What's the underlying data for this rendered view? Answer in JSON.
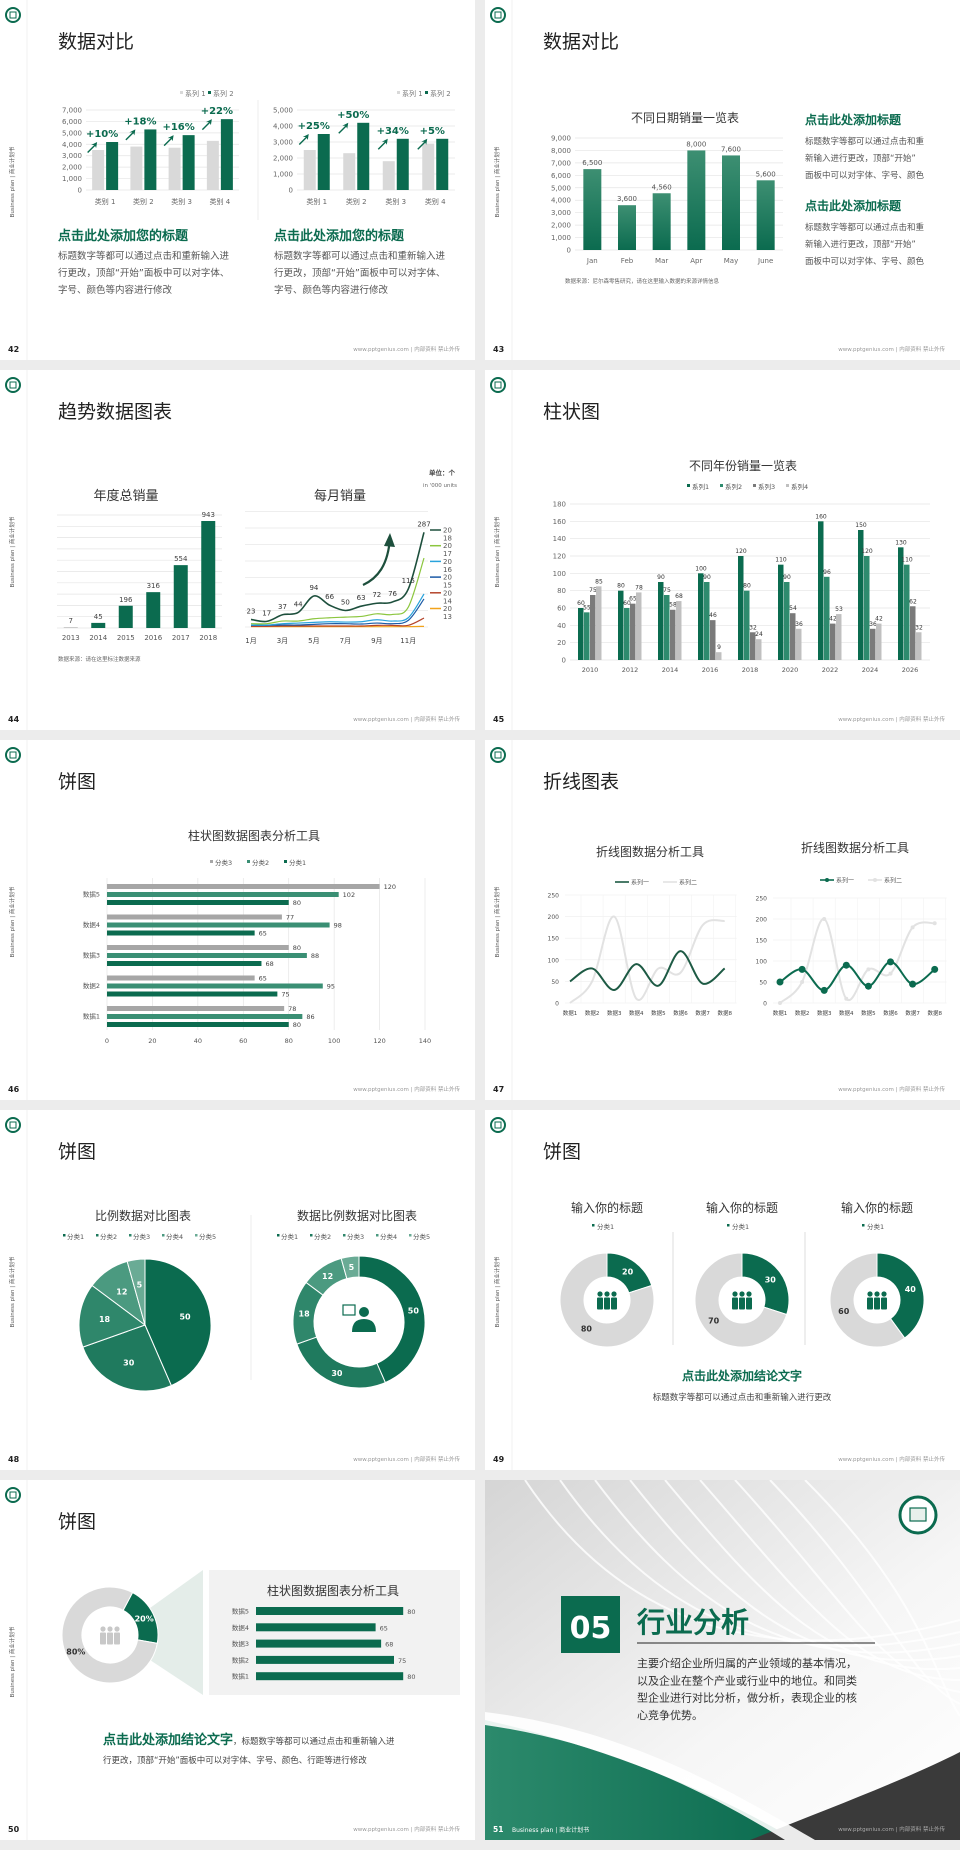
{
  "common": {
    "side_label": "Business plan | 商业计划书",
    "footer": "www.pptgenius.com | 内部资料 禁止外传",
    "logo": "company-seal-logo",
    "colors": {
      "brand": "#0b6b4f",
      "brand_mid": "#2e8b6e",
      "gray_light": "#d9d9d9",
      "gray_dark": "#7a7a7a",
      "page_bg": "#ececec"
    }
  },
  "slides": [
    {
      "number": "42",
      "title": "数据对比",
      "blocks": [
        {
          "heading": "点击此处添加您的标题",
          "lines": [
            "标题数字等都可以通过点击和重新输入进",
            "行更改，顶部“开始”面板中可以对字体、",
            "字号、颜色等内容进行修改"
          ]
        },
        {
          "heading": "点击此处添加您的标题",
          "lines": [
            "标题数字等都可以通过点击和重新输入进",
            "行更改，顶部“开始”面板中可以对字体、",
            "字号、颜色等内容进行修改"
          ]
        }
      ]
    },
    {
      "number": "43",
      "title": "数据对比",
      "source": "数据来源：尼尔森零售研究，请在这里输入数据的来源详情信息",
      "blocks": [
        {
          "heading": "点击此处添加标题",
          "lines": [
            "标题数字等都可以通过点击和重",
            "新输入进行更改，顶部“开始”",
            "面板中可以对字体、字号、颜色"
          ]
        },
        {
          "heading": "点击此处添加标题",
          "lines": [
            "标题数字等都可以通过点击和重",
            "新输入进行更改，顶部“开始”",
            "面板中可以对字体、字号、颜色"
          ]
        }
      ]
    },
    {
      "number": "44",
      "title": "趋势数据图表",
      "source": "数据来源：请在这里标注数据来源",
      "unit": "单位：个",
      "unit_sub": "in '000 units"
    },
    {
      "number": "45",
      "title": "柱状图"
    },
    {
      "number": "46",
      "title": "饼图"
    },
    {
      "number": "47",
      "title": "折线图表"
    },
    {
      "number": "48",
      "title": "饼图"
    },
    {
      "number": "49",
      "title": "饼图",
      "conclusion_heading": "点击此处添加结论文字",
      "conclusion_body": "标题数字等都可以通过点击和重新输入进行更改"
    },
    {
      "number": "50",
      "title": "饼图",
      "conclusion_heading": "点击此处添加结论文字",
      "conclusion_tail": "，标题数字等都可以通过点击和重新输入进",
      "conclusion_line2": "行更改，顶部“开始”面板中可以对字体、字号、颜色、行距等进行修改"
    },
    {
      "number": "51",
      "section_number": "05",
      "title": "行业分析",
      "footer_label": "Business plan | 商业计划书",
      "lines": [
        "主要介绍企业所归属的产业领域的基本情况，",
        "以及企业在整个产业或行业中的地位。和同类",
        "型企业进行对比分析，做分析，表现企业的核",
        "心竞争优势。"
      ]
    }
  ],
  "chart_data": [
    {
      "type": "bar",
      "categories": [
        "类别 1",
        "类别 2",
        "类别 3",
        "类别 4"
      ],
      "series": [
        {
          "name": "系列 1",
          "values": [
            3500,
            3800,
            3700,
            4300
          ],
          "color": "#d9d9d9"
        },
        {
          "name": "系列 2",
          "values": [
            4200,
            5300,
            4800,
            6200
          ],
          "color": "#0b6b4f"
        }
      ],
      "ylim": [
        0,
        7000
      ],
      "yticks": [
        0,
        1000,
        2000,
        3000,
        4000,
        5000,
        6000,
        7000
      ],
      "annotations": [
        "+10%",
        "+18%",
        "+16%",
        "+22%"
      ],
      "legend": "top-right",
      "grid": true
    },
    {
      "type": "bar",
      "categories": [
        "类别 1",
        "类别 2",
        "类别 3",
        "类别 4"
      ],
      "series": [
        {
          "name": "系列 1",
          "values": [
            2500,
            2300,
            1800,
            2900
          ],
          "color": "#d9d9d9"
        },
        {
          "name": "系列 2",
          "values": [
            3500,
            4200,
            3200,
            3200
          ],
          "color": "#0b6b4f"
        }
      ],
      "ylim": [
        0,
        5000
      ],
      "yticks": [
        0,
        1000,
        2000,
        3000,
        4000,
        5000
      ],
      "annotations": [
        "+25%",
        "+50%",
        "+34%",
        "+5%"
      ],
      "legend": "top-right",
      "grid": true
    },
    {
      "type": "bar",
      "title": "不同日期销量一览表",
      "categories": [
        "Jan",
        "Feb",
        "Mar",
        "Apr",
        "May",
        "June"
      ],
      "values": [
        6500,
        3600,
        4560,
        8000,
        7600,
        5600
      ],
      "ylim": [
        0,
        9000
      ],
      "yticks": [
        0,
        1000,
        2000,
        3000,
        4000,
        5000,
        6000,
        7000,
        8000,
        9000
      ],
      "grid": true,
      "color": "#0b6b4f"
    },
    {
      "type": "bar",
      "title": "年度总销量",
      "categories": [
        "2013",
        "2014",
        "2015",
        "2016",
        "2017",
        "2018"
      ],
      "values": [
        7,
        45,
        196,
        316,
        554,
        943
      ],
      "ylim": [
        0,
        1000
      ],
      "grid": true,
      "color": "#0b6b4f"
    },
    {
      "type": "line",
      "title": "每月销量",
      "x": [
        "1月",
        "2月",
        "3月",
        "4月",
        "5月",
        "6月",
        "7月",
        "8月",
        "9月",
        "10月",
        "11月",
        "12月"
      ],
      "xtick_labels": [
        "1月",
        "3月",
        "5月",
        "7月",
        "9月",
        "11月"
      ],
      "ylim": [
        0,
        350
      ],
      "grid": true,
      "legend": "right",
      "series": [
        {
          "name": "2018",
          "color": "#1d4f3c",
          "values": [
            23,
            17,
            37,
            44,
            94,
            66,
            50,
            63,
            72,
            76,
            115,
            287
          ],
          "labeled": true
        },
        {
          "name": "2017",
          "color": "#8cc63f",
          "values": [
            10,
            10,
            18,
            18,
            25,
            28,
            30,
            32,
            40,
            38,
            60,
            209
          ]
        },
        {
          "name": "2016",
          "color": "#29a3dc",
          "values": [
            6,
            6,
            10,
            12,
            14,
            16,
            15,
            16,
            22,
            18,
            28,
            100
          ]
        },
        {
          "name": "2015",
          "color": "#1b5aa6",
          "values": [
            5,
            5,
            6,
            6,
            8,
            10,
            10,
            9,
            12,
            10,
            20,
            85
          ]
        },
        {
          "name": "2014",
          "color": "#b5452b",
          "values": [
            2,
            2,
            3,
            3,
            3,
            3,
            3,
            3,
            5,
            5,
            5,
            27
          ]
        },
        {
          "name": "2013",
          "color": "#f2a31b",
          "values": [
            1,
            1,
            1,
            1,
            1,
            1,
            1,
            1,
            1,
            1,
            1,
            2
          ]
        }
      ]
    },
    {
      "type": "bar",
      "title": "不同年份销量一览表",
      "categories": [
        "2010",
        "2012",
        "2014",
        "2016",
        "2018",
        "2020",
        "2022",
        "2024",
        "2026"
      ],
      "series": [
        {
          "name": "系列1",
          "color": "#0b6b4f",
          "values": [
            60,
            80,
            90,
            100,
            120,
            110,
            160,
            150,
            130
          ]
        },
        {
          "name": "系列2",
          "color": "#2e8b6e",
          "values": [
            55,
            60,
            75,
            90,
            80,
            90,
            96,
            120,
            110
          ]
        },
        {
          "name": "系列3",
          "color": "#7a7a7a",
          "values": [
            75,
            65,
            58,
            46,
            32,
            54,
            42,
            36,
            62
          ]
        },
        {
          "name": "系列4",
          "color": "#c0c0c0",
          "values": [
            85,
            78,
            68,
            9,
            24,
            36,
            53,
            42,
            32
          ]
        }
      ],
      "ylim": [
        0,
        180
      ],
      "yticks": [
        0,
        20,
        40,
        60,
        80,
        100,
        120,
        140,
        160,
        180
      ],
      "legend": "top",
      "grid": true
    },
    {
      "type": "bar",
      "orientation": "horizontal",
      "title": "柱状图数据图表分析工具",
      "categories": [
        "数据5",
        "数据4",
        "数据3",
        "数据2",
        "数据1"
      ],
      "series": [
        {
          "name": "分类3",
          "color": "#a6a6a6",
          "values": [
            120,
            77,
            80,
            65,
            78
          ]
        },
        {
          "name": "分类2",
          "color": "#3a8f74",
          "values": [
            102,
            98,
            88,
            95,
            86
          ]
        },
        {
          "name": "分类1",
          "color": "#0b6b4f",
          "values": [
            80,
            65,
            68,
            75,
            80
          ]
        }
      ],
      "xlim": [
        0,
        140
      ],
      "xticks": [
        0,
        20,
        40,
        60,
        80,
        100,
        120,
        140
      ],
      "legend": "top",
      "grid": true
    },
    {
      "type": "line",
      "title": "折线图数据分析工具",
      "smooth": true,
      "markers": false,
      "x": [
        "数据1",
        "数据2",
        "数据3",
        "数据4",
        "数据5",
        "数据6",
        "数据7",
        "数据8"
      ],
      "series": [
        {
          "name": "系列一",
          "color": "#1d5a44",
          "values": [
            50,
            80,
            30,
            90,
            40,
            120,
            45,
            80
          ]
        },
        {
          "name": "系列二",
          "color": "#e2e2e2",
          "values": [
            0,
            50,
            200,
            10,
            80,
            70,
            180,
            190
          ]
        }
      ],
      "ylim": [
        0,
        250
      ],
      "yticks": [
        0,
        50,
        100,
        150,
        200,
        250
      ],
      "legend": "top",
      "grid": true
    },
    {
      "type": "line",
      "title": "折线图数据分析工具",
      "smooth": true,
      "markers": true,
      "x": [
        "数据1",
        "数据2",
        "数据3",
        "数据4",
        "数据5",
        "数据6",
        "数据7",
        "数据8"
      ],
      "series": [
        {
          "name": "系列一",
          "color": "#0b6b4f",
          "values": [
            50,
            80,
            30,
            90,
            40,
            98,
            45,
            80
          ]
        },
        {
          "name": "系列二",
          "color": "#e2e2e2",
          "values": [
            0,
            50,
            200,
            10,
            80,
            70,
            180,
            190
          ]
        }
      ],
      "ylim": [
        0,
        250
      ],
      "yticks": [
        0,
        50,
        100,
        150,
        200,
        250
      ],
      "legend": "top",
      "grid": true
    },
    {
      "type": "pie",
      "title": "比例数据对比图表",
      "categories": [
        "分类1",
        "分类2",
        "分类3",
        "分类4",
        "分类5"
      ],
      "values": [
        50,
        30,
        18,
        12,
        5
      ],
      "colors": [
        "#0b6b4f",
        "#1f7a5e",
        "#2f876b",
        "#4b9a80",
        "#6aab95"
      ],
      "legend": "top"
    },
    {
      "type": "pie",
      "donut": true,
      "title": "数据比例数据对比图表",
      "categories": [
        "分类1",
        "分类2",
        "分类3",
        "分类4",
        "分类5"
      ],
      "values": [
        50,
        30,
        18,
        12,
        5
      ],
      "colors": [
        "#0b6b4f",
        "#1f7a5e",
        "#2f876b",
        "#4b9a80",
        "#6aab95"
      ],
      "legend": "top",
      "center_icon": "person-chat-icon"
    },
    {
      "type": "pie",
      "donut": true,
      "title": "输入你的标题",
      "legend_label": "分类1",
      "values": [
        20,
        80
      ],
      "colors": [
        "#0b6b4f",
        "#d9d9d9"
      ],
      "center_icon": "team-icon"
    },
    {
      "type": "pie",
      "donut": true,
      "title": "输入你的标题",
      "legend_label": "分类1",
      "values": [
        30,
        70
      ],
      "colors": [
        "#0b6b4f",
        "#d9d9d9"
      ],
      "center_icon": "team-icon"
    },
    {
      "type": "pie",
      "donut": true,
      "title": "输入你的标题",
      "legend_label": "分类1",
      "values": [
        40,
        60
      ],
      "colors": [
        "#0b6b4f",
        "#d9d9d9"
      ],
      "center_icon": "team-icon"
    },
    {
      "type": "pie",
      "donut": true,
      "values": [
        20,
        80
      ],
      "labels": [
        "20%",
        "80%"
      ],
      "colors": [
        "#0b6b4f",
        "#d9d9d9"
      ],
      "center_icon": "team-meeting-icon"
    },
    {
      "type": "bar",
      "orientation": "horizontal",
      "title": "柱状图数据图表分析工具",
      "categories": [
        "数据5",
        "数据4",
        "数据3",
        "数据2",
        "数据1"
      ],
      "values": [
        80,
        65,
        68,
        75,
        80
      ],
      "xlim": [
        0,
        100
      ],
      "color": "#0b6b4f"
    }
  ]
}
